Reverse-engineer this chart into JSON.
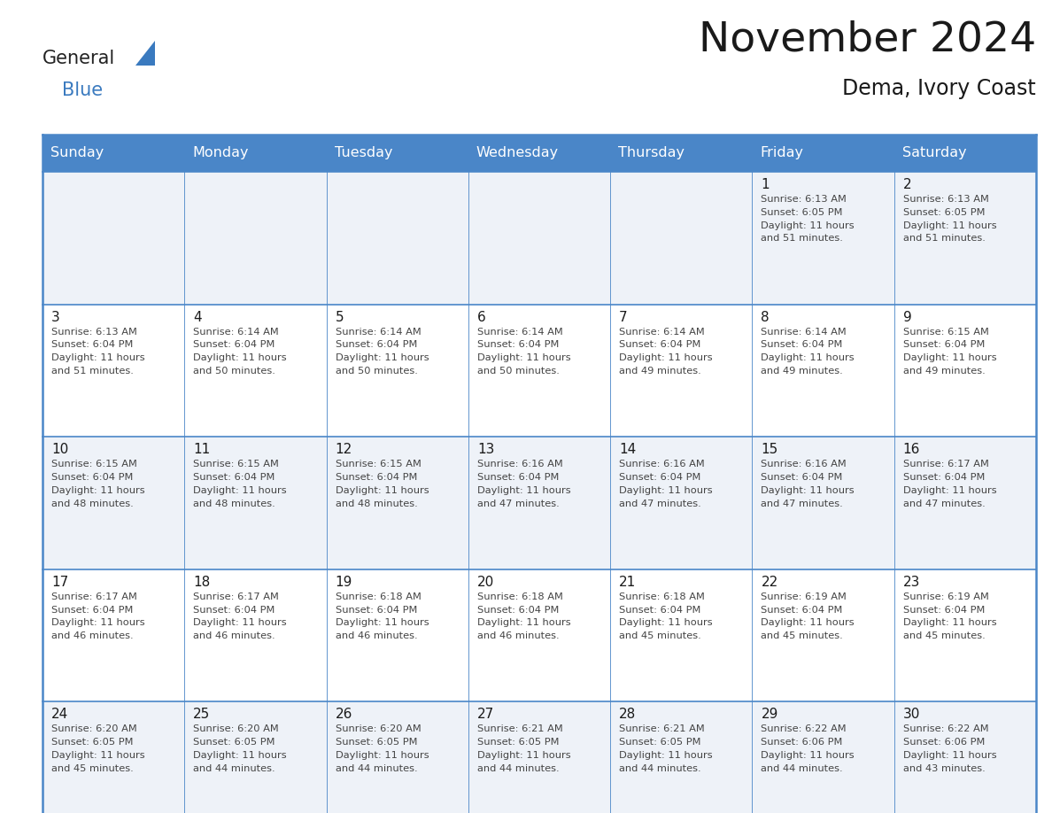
{
  "title": "November 2024",
  "subtitle": "Dema, Ivory Coast",
  "header_color": "#4a86c8",
  "header_text_color": "#ffffff",
  "cell_bg_color": "#ffffff",
  "cell_alt_bg": "#eef2f8",
  "border_color": "#4a86c8",
  "border_color_light": "#4a86c8",
  "day_headers": [
    "Sunday",
    "Monday",
    "Tuesday",
    "Wednesday",
    "Thursday",
    "Friday",
    "Saturday"
  ],
  "title_color": "#1a1a1a",
  "subtitle_color": "#1a1a1a",
  "day_number_color": "#1a1a1a",
  "cell_text_color": "#444444",
  "calendar": [
    [
      null,
      null,
      null,
      null,
      null,
      {
        "day": 1,
        "sunrise": "6:13 AM",
        "sunset": "6:05 PM",
        "daylight": "11 hours",
        "daylight2": "and 51 minutes."
      },
      {
        "day": 2,
        "sunrise": "6:13 AM",
        "sunset": "6:05 PM",
        "daylight": "11 hours",
        "daylight2": "and 51 minutes."
      }
    ],
    [
      {
        "day": 3,
        "sunrise": "6:13 AM",
        "sunset": "6:04 PM",
        "daylight": "11 hours",
        "daylight2": "and 51 minutes."
      },
      {
        "day": 4,
        "sunrise": "6:14 AM",
        "sunset": "6:04 PM",
        "daylight": "11 hours",
        "daylight2": "and 50 minutes."
      },
      {
        "day": 5,
        "sunrise": "6:14 AM",
        "sunset": "6:04 PM",
        "daylight": "11 hours",
        "daylight2": "and 50 minutes."
      },
      {
        "day": 6,
        "sunrise": "6:14 AM",
        "sunset": "6:04 PM",
        "daylight": "11 hours",
        "daylight2": "and 50 minutes."
      },
      {
        "day": 7,
        "sunrise": "6:14 AM",
        "sunset": "6:04 PM",
        "daylight": "11 hours",
        "daylight2": "and 49 minutes."
      },
      {
        "day": 8,
        "sunrise": "6:14 AM",
        "sunset": "6:04 PM",
        "daylight": "11 hours",
        "daylight2": "and 49 minutes."
      },
      {
        "day": 9,
        "sunrise": "6:15 AM",
        "sunset": "6:04 PM",
        "daylight": "11 hours",
        "daylight2": "and 49 minutes."
      }
    ],
    [
      {
        "day": 10,
        "sunrise": "6:15 AM",
        "sunset": "6:04 PM",
        "daylight": "11 hours",
        "daylight2": "and 48 minutes."
      },
      {
        "day": 11,
        "sunrise": "6:15 AM",
        "sunset": "6:04 PM",
        "daylight": "11 hours",
        "daylight2": "and 48 minutes."
      },
      {
        "day": 12,
        "sunrise": "6:15 AM",
        "sunset": "6:04 PM",
        "daylight": "11 hours",
        "daylight2": "and 48 minutes."
      },
      {
        "day": 13,
        "sunrise": "6:16 AM",
        "sunset": "6:04 PM",
        "daylight": "11 hours",
        "daylight2": "and 47 minutes."
      },
      {
        "day": 14,
        "sunrise": "6:16 AM",
        "sunset": "6:04 PM",
        "daylight": "11 hours",
        "daylight2": "and 47 minutes."
      },
      {
        "day": 15,
        "sunrise": "6:16 AM",
        "sunset": "6:04 PM",
        "daylight": "11 hours",
        "daylight2": "and 47 minutes."
      },
      {
        "day": 16,
        "sunrise": "6:17 AM",
        "sunset": "6:04 PM",
        "daylight": "11 hours",
        "daylight2": "and 47 minutes."
      }
    ],
    [
      {
        "day": 17,
        "sunrise": "6:17 AM",
        "sunset": "6:04 PM",
        "daylight": "11 hours",
        "daylight2": "and 46 minutes."
      },
      {
        "day": 18,
        "sunrise": "6:17 AM",
        "sunset": "6:04 PM",
        "daylight": "11 hours",
        "daylight2": "and 46 minutes."
      },
      {
        "day": 19,
        "sunrise": "6:18 AM",
        "sunset": "6:04 PM",
        "daylight": "11 hours",
        "daylight2": "and 46 minutes."
      },
      {
        "day": 20,
        "sunrise": "6:18 AM",
        "sunset": "6:04 PM",
        "daylight": "11 hours",
        "daylight2": "and 46 minutes."
      },
      {
        "day": 21,
        "sunrise": "6:18 AM",
        "sunset": "6:04 PM",
        "daylight": "11 hours",
        "daylight2": "and 45 minutes."
      },
      {
        "day": 22,
        "sunrise": "6:19 AM",
        "sunset": "6:04 PM",
        "daylight": "11 hours",
        "daylight2": "and 45 minutes."
      },
      {
        "day": 23,
        "sunrise": "6:19 AM",
        "sunset": "6:04 PM",
        "daylight": "11 hours",
        "daylight2": "and 45 minutes."
      }
    ],
    [
      {
        "day": 24,
        "sunrise": "6:20 AM",
        "sunset": "6:05 PM",
        "daylight": "11 hours",
        "daylight2": "and 45 minutes."
      },
      {
        "day": 25,
        "sunrise": "6:20 AM",
        "sunset": "6:05 PM",
        "daylight": "11 hours",
        "daylight2": "and 44 minutes."
      },
      {
        "day": 26,
        "sunrise": "6:20 AM",
        "sunset": "6:05 PM",
        "daylight": "11 hours",
        "daylight2": "and 44 minutes."
      },
      {
        "day": 27,
        "sunrise": "6:21 AM",
        "sunset": "6:05 PM",
        "daylight": "11 hours",
        "daylight2": "and 44 minutes."
      },
      {
        "day": 28,
        "sunrise": "6:21 AM",
        "sunset": "6:05 PM",
        "daylight": "11 hours",
        "daylight2": "and 44 minutes."
      },
      {
        "day": 29,
        "sunrise": "6:22 AM",
        "sunset": "6:06 PM",
        "daylight": "11 hours",
        "daylight2": "and 44 minutes."
      },
      {
        "day": 30,
        "sunrise": "6:22 AM",
        "sunset": "6:06 PM",
        "daylight": "11 hours",
        "daylight2": "and 43 minutes."
      }
    ]
  ],
  "logo_general_color": "#222222",
  "logo_blue_color": "#3a7abf",
  "figsize": [
    11.88,
    9.18
  ],
  "dpi": 100
}
